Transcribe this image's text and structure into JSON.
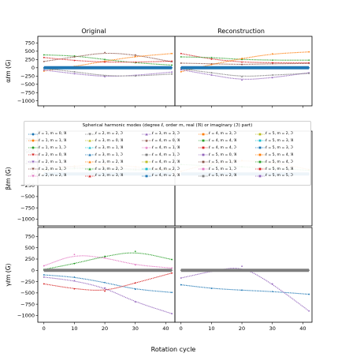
{
  "columns": [
    "Original",
    "Reconstruction"
  ],
  "xlabel": "Rotation cycle",
  "ylabels": [
    "αℓm (G)",
    "βℓm (G)",
    "γℓm (G)"
  ],
  "legend": {
    "title": "Spherical harmonic modes (degree ℓ, order m, real (ℜ) or imaginary (ℑ) part)",
    "entries": [
      "ℓ = 1, m = 0, ℜ",
      "ℓ = 1, m = 1, ℜ",
      "ℓ = 1, m = 1, ℑ",
      "ℓ = 2, m = 0, ℜ",
      "ℓ = 2, m = 1, ℜ",
      "ℓ = 2, m = 1, ℑ",
      "ℓ = 2, m = 2, ℜ",
      "ℓ = 2, m = 2, ℑ",
      "ℓ = 3, m = 0, ℜ",
      "ℓ = 3, m = 1, ℜ",
      "ℓ = 3, m = 1, ℑ",
      "ℓ = 3, m = 2, ℜ",
      "ℓ = 3, m = 2, ℑ",
      "ℓ = 3, m = 3, ℜ",
      "ℓ = 3, m = 3, ℑ",
      "ℓ = 4, m = 0, ℜ",
      "ℓ = 4, m = 1, ℜ",
      "ℓ = 4, m = 1, ℑ",
      "ℓ = 4, m = 2, ℜ",
      "ℓ = 4, m = 2, ℑ",
      "ℓ = 4, m = 3, ℜ",
      "ℓ = 4, m = 3, ℑ",
      "ℓ = 4, m = 4, ℜ",
      "ℓ = 4, m = 4, ℑ",
      "ℓ = 5, m = 0, ℜ",
      "ℓ = 5, m = 1, ℜ",
      "ℓ = 5, m = 1, ℑ",
      "ℓ = 5, m = 2, ℜ",
      "ℓ = 5, m = 2, ℑ",
      "ℓ = 5, m = 3, ℜ",
      "ℓ = 5, m = 3, ℑ",
      "ℓ = 5, m = 4, ℜ",
      "ℓ = 5, m = 4, ℑ",
      "ℓ = 5, m = 5, ℜ",
      "ℓ = 5, m = 5, ℑ"
    ],
    "markers": [
      "circle",
      "circle",
      "circle",
      "triangle-down",
      "triangle-down",
      "triangle-down",
      "triangle-down",
      "triangle-down",
      "triangle-up",
      "triangle-up",
      "triangle-up",
      "triangle-up",
      "triangle-up",
      "triangle-up",
      "triangle-up",
      "star",
      "star",
      "square",
      "square",
      "square",
      "square",
      "square",
      "square",
      "square",
      "square",
      "square",
      "square",
      "square",
      "square",
      "square",
      "square",
      "square",
      "square",
      "square",
      "square"
    ],
    "colors": [
      "#1f77b4",
      "#ff7f0e",
      "#2ca02c",
      "#d62728",
      "#9467bd",
      "#8c564b",
      "#e377c2",
      "#7f7f7f",
      "#bcbd22",
      "#17becf",
      "#1f77b4",
      "#ff7f0e",
      "#2ca02c",
      "#d62728",
      "#9467bd",
      "#8c564b",
      "#e377c2",
      "#7f7f7f",
      "#bcbd22",
      "#17becf",
      "#1f77b4",
      "#ff7f0e",
      "#2ca02c",
      "#d62728",
      "#9467bd",
      "#8c564b",
      "#e377c2",
      "#7f7f7f",
      "#bcbd22",
      "#17becf",
      "#1f77b4",
      "#ff7f0e",
      "#2ca02c",
      "#d62728",
      "#9467bd"
    ]
  },
  "chart_data": [
    {
      "type": "line",
      "panel": "alpha",
      "column": "Original",
      "xlim": [
        -2,
        43
      ],
      "ylim": [
        -1150,
        950
      ],
      "xticks": [
        0,
        10,
        20,
        30,
        40
      ],
      "yticks": [
        -1000,
        -750,
        -500,
        -250,
        0,
        250,
        500,
        750
      ],
      "series": [
        {
          "color": "#2ca02c",
          "x": [
            0,
            10,
            20,
            30,
            42
          ],
          "y": [
            390,
            360,
            250,
            150,
            80
          ]
        },
        {
          "color": "#8c564b",
          "x": [
            0,
            10,
            20,
            30,
            42
          ],
          "y": [
            190,
            330,
            460,
            390,
            180
          ]
        },
        {
          "color": "#ff7f0e",
          "x": [
            0,
            10,
            20,
            30,
            42
          ],
          "y": [
            -100,
            40,
            200,
            340,
            430
          ]
        },
        {
          "color": "#d62728",
          "x": [
            0,
            10,
            20,
            30,
            42
          ],
          "y": [
            310,
            220,
            170,
            170,
            200
          ]
        },
        {
          "color": "#9467bd",
          "x": [
            0,
            10,
            20,
            30,
            42
          ],
          "y": [
            -70,
            -180,
            -270,
            -230,
            -130
          ]
        },
        {
          "color": "#7f7f7f",
          "x": [
            0,
            10,
            20,
            30,
            42
          ],
          "y": [
            -20,
            -120,
            -240,
            -250,
            -190
          ]
        },
        {
          "color": "#1f77b4",
          "x": [
            0,
            42
          ],
          "y": [
            0,
            0
          ]
        }
      ]
    },
    {
      "type": "line",
      "panel": "alpha",
      "column": "Reconstruction",
      "xlim": [
        -2,
        43
      ],
      "ylim": [
        -1150,
        950
      ],
      "xticks": [
        0,
        10,
        20,
        30,
        40
      ],
      "series": [
        {
          "color": "#d62728",
          "x": [
            0,
            10,
            20,
            30,
            42
          ],
          "y": [
            430,
            260,
            170,
            150,
            150
          ]
        },
        {
          "color": "#2ca02c",
          "x": [
            0,
            10,
            20,
            30,
            42
          ],
          "y": [
            330,
            310,
            250,
            230,
            230
          ]
        },
        {
          "color": "#ff7f0e",
          "x": [
            0,
            10,
            20,
            30,
            42
          ],
          "y": [
            -120,
            100,
            280,
            420,
            480
          ]
        },
        {
          "color": "#8c564b",
          "x": [
            0,
            10,
            20,
            30,
            42
          ],
          "y": [
            140,
            120,
            100,
            120,
            130
          ]
        },
        {
          "color": "#9467bd",
          "x": [
            0,
            10,
            20,
            30,
            42
          ],
          "y": [
            -60,
            -220,
            -370,
            -300,
            -150
          ]
        },
        {
          "color": "#7f7f7f",
          "x": [
            0,
            10,
            20,
            30,
            42
          ],
          "y": [
            -30,
            -150,
            -270,
            -220,
            -170
          ]
        },
        {
          "color": "#1f77b4",
          "x": [
            0,
            42
          ],
          "y": [
            0,
            0
          ]
        }
      ]
    },
    {
      "type": "line",
      "panel": "beta",
      "column": "Original",
      "xlim": [
        -2,
        43
      ],
      "ylim": [
        -1150,
        950
      ],
      "xticks": [
        0,
        10,
        20,
        30,
        40
      ],
      "yticks": [
        -1000,
        -750,
        -500,
        -250,
        0,
        250,
        500,
        750
      ],
      "series": [
        {
          "color": "#ff7f0e",
          "x": [
            0,
            10,
            20,
            30,
            42
          ],
          "y": [
            80,
            180,
            220,
            160,
            90
          ]
        },
        {
          "color": "#8c564b",
          "x": [
            0,
            10,
            20,
            30,
            42
          ],
          "y": [
            190,
            150,
            130,
            110,
            80
          ]
        },
        {
          "color": "#2ca02c",
          "x": [
            0,
            10,
            20,
            30,
            42
          ],
          "y": [
            100,
            120,
            110,
            90,
            70
          ]
        },
        {
          "color": "#1f77b4",
          "x": [
            0,
            42
          ],
          "y": [
            0,
            0
          ]
        }
      ]
    },
    {
      "type": "line",
      "panel": "beta",
      "column": "Reconstruction",
      "xlim": [
        -2,
        43
      ],
      "ylim": [
        -1150,
        950
      ],
      "xticks": [
        0,
        10,
        20,
        30,
        40
      ],
      "series": [
        {
          "color": "#ff7f0e",
          "x": [
            0,
            10,
            20,
            30,
            42
          ],
          "y": [
            60,
            240,
            300,
            260,
            100
          ]
        },
        {
          "color": "#2ca02c",
          "x": [
            0,
            10,
            20,
            30,
            42
          ],
          "y": [
            210,
            180,
            160,
            130,
            80
          ]
        },
        {
          "color": "#1f77b4",
          "x": [
            0,
            42
          ],
          "y": [
            0,
            0
          ]
        }
      ]
    },
    {
      "type": "line",
      "panel": "gamma",
      "column": "Original",
      "xlim": [
        -2,
        43
      ],
      "ylim": [
        -1150,
        950
      ],
      "xticks": [
        0,
        10,
        20,
        30,
        40
      ],
      "yticks": [
        -1000,
        -750,
        -500,
        -250,
        0,
        250,
        500,
        750
      ],
      "series": [
        {
          "color": "#e377c2",
          "x": [
            0,
            10,
            20,
            30,
            42
          ],
          "y": [
            100,
            350,
            280,
            120,
            50
          ]
        },
        {
          "color": "#2ca02c",
          "x": [
            0,
            10,
            20,
            30,
            42
          ],
          "y": [
            20,
            150,
            310,
            420,
            240
          ]
        },
        {
          "color": "#1f77b4",
          "x": [
            0,
            10,
            20,
            30,
            42
          ],
          "y": [
            -100,
            -150,
            -270,
            -420,
            -490
          ]
        },
        {
          "color": "#d62728",
          "x": [
            0,
            10,
            20,
            30,
            42
          ],
          "y": [
            -300,
            -410,
            -460,
            -280,
            -60
          ]
        },
        {
          "color": "#9467bd",
          "x": [
            0,
            10,
            20,
            30,
            42
          ],
          "y": [
            -150,
            -230,
            -390,
            -700,
            -960
          ]
        },
        {
          "color": "#7f7f7f",
          "x": [
            0,
            42
          ],
          "y": [
            0,
            0
          ]
        }
      ]
    },
    {
      "type": "line",
      "panel": "gamma",
      "column": "Reconstruction",
      "xlim": [
        -2,
        43
      ],
      "ylim": [
        -1150,
        950
      ],
      "xticks": [
        0,
        10,
        20,
        30,
        40
      ],
      "series": [
        {
          "color": "#1f77b4",
          "x": [
            0,
            10,
            20,
            30,
            42
          ],
          "y": [
            -320,
            -400,
            -440,
            -470,
            -530
          ]
        },
        {
          "color": "#9467bd",
          "x": [
            0,
            10,
            20,
            30,
            42
          ],
          "y": [
            -170,
            -20,
            90,
            -300,
            -900
          ]
        },
        {
          "color": "#7f7f7f",
          "x": [
            0,
            42
          ],
          "y": [
            0,
            0
          ]
        }
      ]
    }
  ]
}
